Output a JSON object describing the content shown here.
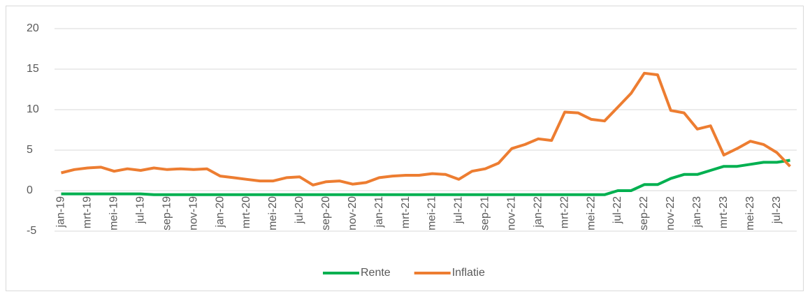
{
  "chart_data": {
    "type": "line",
    "categories": [
      "jan-19",
      null,
      "mrt-19",
      null,
      "mei-19",
      null,
      "jul-19",
      null,
      "sep-19",
      null,
      "nov-19",
      null,
      "jan-20",
      null,
      "mrt-20",
      null,
      "mei-20",
      null,
      "jul-20",
      null,
      "sep-20",
      null,
      "nov-20",
      null,
      "jan-21",
      null,
      "mrt-21",
      null,
      "mei-21",
      null,
      "jul-21",
      null,
      "sep-21",
      null,
      "nov-21",
      null,
      "jan-22",
      null,
      "mrt-22",
      null,
      "mei-22",
      null,
      "jul-22",
      null,
      "sep-22",
      null,
      "nov-22",
      null,
      "jan-23",
      null,
      "mrt-23",
      null,
      "mei-23",
      null,
      "jul-23",
      null
    ],
    "series": [
      {
        "name": "Rente",
        "color": "#00b050",
        "values": [
          -0.4,
          -0.4,
          -0.4,
          -0.4,
          -0.4,
          -0.4,
          -0.4,
          -0.5,
          -0.5,
          -0.5,
          -0.5,
          -0.5,
          -0.5,
          -0.5,
          -0.5,
          -0.5,
          -0.5,
          -0.5,
          -0.5,
          -0.5,
          -0.5,
          -0.5,
          -0.5,
          -0.5,
          -0.5,
          -0.5,
          -0.5,
          -0.5,
          -0.5,
          -0.5,
          -0.5,
          -0.5,
          -0.5,
          -0.5,
          -0.5,
          -0.5,
          -0.5,
          -0.5,
          -0.5,
          -0.5,
          -0.5,
          -0.5,
          0,
          0,
          0.75,
          0.75,
          1.5,
          2,
          2,
          2.5,
          3,
          3,
          3.25,
          3.5,
          3.5,
          3.75
        ]
      },
      {
        "name": "Inflatie",
        "color": "#ed7d31",
        "values": [
          2.2,
          2.6,
          2.8,
          2.9,
          2.4,
          2.7,
          2.5,
          2.8,
          2.6,
          2.7,
          2.6,
          2.7,
          1.8,
          1.6,
          1.4,
          1.2,
          1.2,
          1.6,
          1.7,
          0.7,
          1.1,
          1.2,
          0.8,
          1.0,
          1.6,
          1.8,
          1.9,
          1.9,
          2.1,
          2.0,
          1.4,
          2.4,
          2.7,
          3.4,
          5.2,
          5.7,
          6.4,
          6.2,
          9.7,
          9.6,
          8.8,
          8.6,
          10.3,
          12.0,
          14.5,
          14.3,
          9.9,
          9.6,
          7.6,
          8.0,
          4.4,
          5.2,
          6.1,
          5.7,
          4.7,
          3.0
        ]
      }
    ],
    "ylim": [
      -5,
      20
    ],
    "yticks": [
      -5,
      0,
      5,
      10,
      15,
      20
    ],
    "grid": true,
    "legend": "bottom"
  }
}
